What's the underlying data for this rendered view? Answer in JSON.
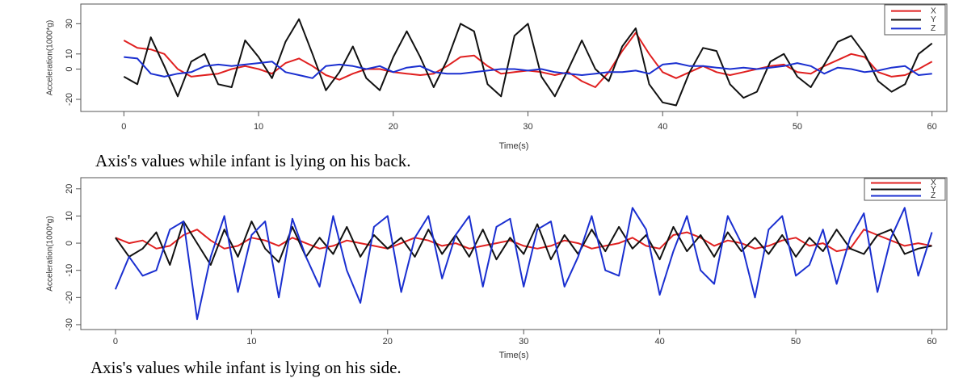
{
  "chart_data": [
    {
      "type": "line",
      "caption": "Axis's values while infant is lying on his back.",
      "x_label": "Time(s)",
      "y_label": "Acceleration(1000*g)",
      "x": [
        0,
        1,
        2,
        3,
        4,
        5,
        6,
        7,
        8,
        9,
        10,
        11,
        12,
        13,
        14,
        15,
        16,
        17,
        18,
        19,
        20,
        21,
        22,
        23,
        24,
        25,
        26,
        27,
        28,
        29,
        30,
        31,
        32,
        33,
        34,
        35,
        36,
        37,
        38,
        39,
        40,
        41,
        42,
        43,
        44,
        45,
        46,
        47,
        48,
        49,
        50,
        51,
        52,
        53,
        54,
        55,
        56,
        57,
        58,
        59,
        60
      ],
      "xlim": [
        -3.2,
        61.1
      ],
      "xticks": [
        0,
        10,
        20,
        30,
        40,
        50,
        60
      ],
      "ylim": [
        -28,
        43
      ],
      "yticks": [
        -20,
        0,
        10,
        30
      ],
      "legend": "upper right",
      "series": [
        {
          "name": "X",
          "color": "#e02020",
          "values": [
            19,
            14,
            13,
            10,
            0,
            -5,
            -4,
            -3,
            0,
            2,
            0,
            -3,
            4,
            7,
            2,
            -4,
            -7,
            -3,
            0,
            0,
            -2,
            -3,
            -4,
            -3,
            2,
            8,
            9,
            2,
            -3,
            -2,
            -1,
            -2,
            -4,
            -2,
            -8,
            -12,
            -2,
            12,
            24,
            10,
            -2,
            -6,
            -2,
            2,
            -2,
            -4,
            -2,
            0,
            2,
            3,
            -2,
            -3,
            2,
            6,
            10,
            8,
            -2,
            -5,
            -4,
            0,
            5
          ]
        },
        {
          "name": "Y",
          "color": "#111111",
          "values": [
            -5,
            -10,
            21,
            2,
            -18,
            5,
            10,
            -10,
            -12,
            19,
            8,
            -6,
            18,
            33,
            10,
            -14,
            -2,
            15,
            -6,
            -14,
            8,
            25,
            8,
            -12,
            6,
            30,
            25,
            -10,
            -18,
            22,
            30,
            -5,
            -18,
            0,
            19,
            0,
            -8,
            15,
            27,
            -10,
            -22,
            -24,
            -2,
            14,
            12,
            -10,
            -19,
            -15,
            5,
            10,
            -5,
            -12,
            3,
            18,
            22,
            10,
            -8,
            -15,
            -10,
            10,
            17
          ]
        },
        {
          "name": "Z",
          "color": "#1a2fd0",
          "values": [
            8,
            7,
            -3,
            -5,
            -3,
            -2,
            2,
            3,
            2,
            3,
            4,
            5,
            -2,
            -4,
            -6,
            2,
            3,
            2,
            0,
            2,
            -2,
            1,
            2,
            -2,
            -3,
            -3,
            -2,
            -1,
            0,
            0,
            -1,
            0,
            -2,
            -3,
            -4,
            -3,
            -2,
            -2,
            -1,
            -3,
            3,
            4,
            2,
            2,
            1,
            0,
            1,
            0,
            1,
            2,
            4,
            2,
            -3,
            1,
            0,
            -2,
            -1,
            1,
            2,
            -4,
            -3
          ]
        }
      ]
    },
    {
      "type": "line",
      "caption": "Axis's values while infant is lying on his side.",
      "x_label": "Time(s)",
      "y_label": "Acceleration(1000*g)",
      "x": [
        0,
        1,
        2,
        3,
        4,
        5,
        6,
        7,
        8,
        9,
        10,
        11,
        12,
        13,
        14,
        15,
        16,
        17,
        18,
        19,
        20,
        21,
        22,
        23,
        24,
        25,
        26,
        27,
        28,
        29,
        30,
        31,
        32,
        33,
        34,
        35,
        36,
        37,
        38,
        39,
        40,
        41,
        42,
        43,
        44,
        45,
        46,
        47,
        48,
        49,
        50,
        51,
        52,
        53,
        54,
        55,
        56,
        57,
        58,
        59,
        60
      ],
      "xlim": [
        -2.55,
        61.1
      ],
      "xticks": [
        0,
        10,
        20,
        30,
        40,
        50,
        60
      ],
      "ylim": [
        -31.8,
        24.1
      ],
      "yticks": [
        -30,
        -20,
        -10,
        0,
        10,
        20
      ],
      "legend": "upper right",
      "series": [
        {
          "name": "X",
          "color": "#e02020",
          "values": [
            2,
            0,
            1,
            -2,
            -1,
            3,
            5,
            1,
            -2,
            -1,
            2,
            1,
            -1,
            2,
            0,
            -2,
            -1,
            1,
            0,
            -1,
            -2,
            0,
            2,
            1,
            -1,
            0,
            -2,
            -1,
            0,
            1,
            -1,
            -2,
            -1,
            1,
            0,
            -2,
            -1,
            0,
            2,
            -1,
            -2,
            3,
            4,
            2,
            -1,
            1,
            0,
            -2,
            -1,
            1,
            2,
            -1,
            0,
            -3,
            -2,
            5,
            3,
            1,
            -1,
            0,
            -1
          ]
        },
        {
          "name": "Y",
          "color": "#111111",
          "values": [
            2,
            -5,
            -2,
            4,
            -8,
            8,
            0,
            -8,
            5,
            -5,
            8,
            -2,
            -7,
            6,
            -5,
            2,
            -4,
            6,
            -5,
            3,
            -2,
            2,
            -5,
            5,
            -4,
            3,
            -5,
            5,
            -6,
            2,
            -4,
            7,
            -6,
            3,
            -4,
            5,
            -3,
            6,
            -2,
            3,
            -6,
            6,
            -3,
            3,
            -5,
            4,
            -3,
            2,
            -4,
            3,
            -5,
            2,
            -3,
            5,
            -2,
            -4,
            3,
            5,
            -4,
            -2,
            -1
          ]
        },
        {
          "name": "Z",
          "color": "#1a2fd0",
          "values": [
            -17,
            -5,
            -12,
            -10,
            5,
            8,
            -28,
            -5,
            10,
            -18,
            3,
            8,
            -20,
            9,
            -5,
            -16,
            10,
            -10,
            -22,
            6,
            10,
            -18,
            2,
            10,
            -13,
            3,
            10,
            -16,
            6,
            9,
            -16,
            5,
            8,
            -16,
            -5,
            10,
            -10,
            -12,
            13,
            5,
            -19,
            -3,
            10,
            -10,
            -15,
            10,
            0,
            -20,
            5,
            10,
            -12,
            -8,
            5,
            -15,
            2,
            11,
            -18,
            2,
            13,
            -12,
            4
          ]
        }
      ]
    }
  ]
}
